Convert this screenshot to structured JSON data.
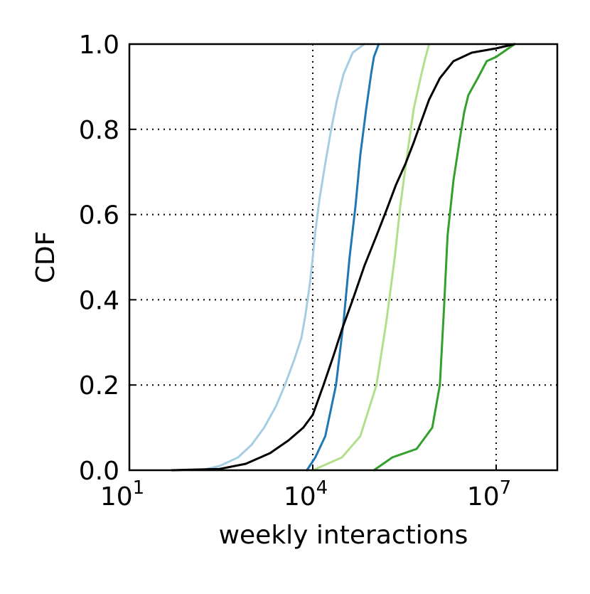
{
  "chart_data": {
    "type": "line",
    "title": "",
    "xlabel": "weekly interactions",
    "ylabel": "CDF",
    "xscale": "log",
    "xlim": [
      10,
      100000000
    ],
    "ylim": [
      0,
      1
    ],
    "grid": "dotted",
    "x_ticks": [
      {
        "value": 10,
        "base": "10",
        "exp": "1"
      },
      {
        "value": 10000,
        "base": "10",
        "exp": "4"
      },
      {
        "value": 10000000,
        "base": "10",
        "exp": "7"
      }
    ],
    "y_ticks": [
      {
        "value": 0.0,
        "label": "0.0"
      },
      {
        "value": 0.2,
        "label": "0.2"
      },
      {
        "value": 0.4,
        "label": "0.4"
      },
      {
        "value": 0.6,
        "label": "0.6"
      },
      {
        "value": 0.8,
        "label": "0.8"
      },
      {
        "value": 1.0,
        "label": "1.0"
      }
    ],
    "series": [
      {
        "color": "#a6cee3",
        "x": [
          150,
          300,
          600,
          1000,
          1600,
          2500,
          3500,
          5000,
          6500,
          7500,
          9000,
          10000,
          11000,
          13000,
          16000,
          20000,
          25000,
          32000,
          45000,
          70000
        ],
        "y": [
          0.0,
          0.01,
          0.03,
          0.06,
          0.1,
          0.15,
          0.2,
          0.26,
          0.31,
          0.36,
          0.44,
          0.5,
          0.56,
          0.64,
          0.72,
          0.8,
          0.87,
          0.93,
          0.98,
          1.0
        ]
      },
      {
        "color": "#1f78b4",
        "x": [
          8000,
          11000,
          16000,
          24000,
          32000,
          40000,
          50000,
          60000,
          75000,
          90000,
          100000,
          120000
        ],
        "y": [
          0.0,
          0.03,
          0.08,
          0.2,
          0.35,
          0.5,
          0.62,
          0.74,
          0.85,
          0.93,
          0.97,
          1.0
        ]
      },
      {
        "color": "#b2df8a",
        "x": [
          10000,
          30000,
          60000,
          110000,
          160000,
          220000,
          270000,
          350000,
          450000,
          600000,
          700000,
          800000
        ],
        "y": [
          0.0,
          0.03,
          0.08,
          0.2,
          0.35,
          0.5,
          0.62,
          0.74,
          0.85,
          0.93,
          0.97,
          1.0
        ]
      },
      {
        "color": "#33a02c",
        "x": [
          100000,
          200000,
          500000,
          900000,
          1200000,
          1400000,
          1600000,
          2000000,
          2500000,
          3000000,
          3500000,
          5000000,
          7000000,
          10000000,
          20000000
        ],
        "y": [
          0.0,
          0.03,
          0.05,
          0.1,
          0.2,
          0.38,
          0.55,
          0.68,
          0.77,
          0.84,
          0.88,
          0.92,
          0.96,
          0.97,
          1.0
        ]
      },
      {
        "color": "#000000",
        "x": [
          50,
          300,
          800,
          2000,
          4000,
          7000,
          10000,
          15000,
          22000,
          30000,
          45000,
          70000,
          110000,
          160000,
          230000,
          330000,
          450000,
          600000,
          800000,
          1200000,
          2000000,
          4000000,
          10000000,
          20000000
        ],
        "y": [
          0.0,
          0.003,
          0.015,
          0.04,
          0.07,
          0.1,
          0.13,
          0.2,
          0.27,
          0.33,
          0.4,
          0.48,
          0.55,
          0.61,
          0.67,
          0.72,
          0.77,
          0.82,
          0.87,
          0.92,
          0.96,
          0.98,
          0.99,
          1.0
        ]
      }
    ]
  }
}
